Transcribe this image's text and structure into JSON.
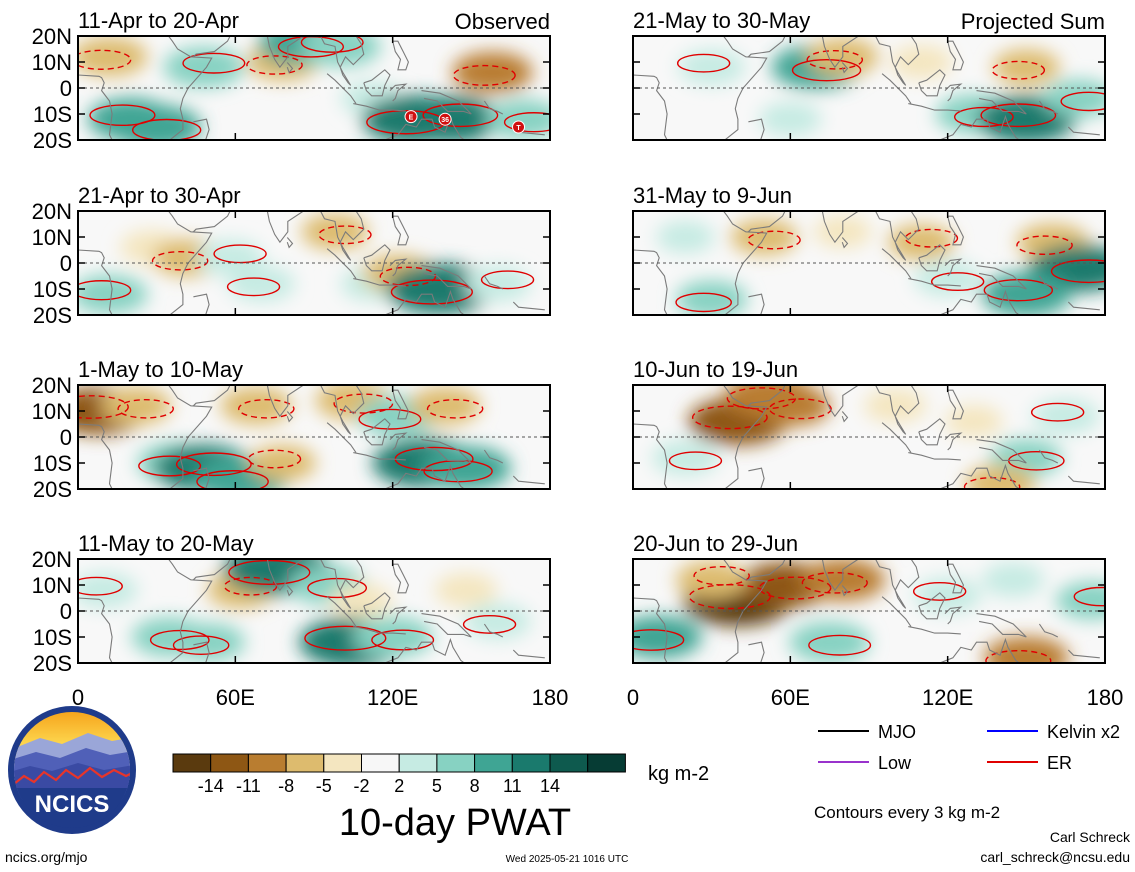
{
  "chart_data": {
    "type": "heatmap",
    "title": "10-day PWAT",
    "subtitle": "Contours every 3 kg m-2",
    "variable_units": "kg m-2",
    "columns": [
      {
        "header": "Observed",
        "panels": [
          "11-Apr to 20-Apr",
          "21-Apr to 30-Apr",
          "1-May to 10-May",
          "11-May to 20-May"
        ]
      },
      {
        "header": "Projected Sum",
        "panels": [
          "21-May to 30-May",
          "31-May to 9-Jun",
          "10-Jun to 19-Jun",
          "20-Jun to 29-Jun"
        ]
      }
    ],
    "lat_ticks": [
      "20N",
      "10N",
      "0",
      "10S",
      "20S"
    ],
    "lat_range": [
      -20,
      20
    ],
    "lon_ticks": [
      "0",
      "60E",
      "120E",
      "180"
    ],
    "lon_range": [
      0,
      180
    ],
    "colorbar": {
      "tick_labels": [
        "-14",
        "-11",
        "-8",
        "-5",
        "-2",
        "2",
        "5",
        "8",
        "11",
        "14"
      ],
      "colors": [
        "#5a3a0e",
        "#8e5714",
        "#b97d30",
        "#ddbb6e",
        "#f4e6c0",
        "#f7f7f7",
        "#c6ebe3",
        "#87d2c2",
        "#3fa594",
        "#1a7a6d",
        "#0e5a4e",
        "#063c34"
      ]
    },
    "legend": [
      {
        "label": "MJO",
        "color": "#000000"
      },
      {
        "label": "Kelvin x2",
        "color": "#0000ff"
      },
      {
        "label": "Low",
        "color": "#9932cc"
      },
      {
        "label": "ER",
        "color": "#e00000"
      }
    ],
    "tc_markers": [
      {
        "panel": 0,
        "label": "E",
        "lon": 127,
        "lat": -11
      },
      {
        "panel": 0,
        "label": "36",
        "lon": 140,
        "lat": -12
      },
      {
        "panel": 0,
        "label": "T",
        "lon": 168,
        "lat": -15
      }
    ],
    "anomaly_blobs": [
      [
        {
          "lon": 20,
          "lat": -12,
          "value": 9
        },
        {
          "lon": 30,
          "lat": -15,
          "value": 10
        },
        {
          "lon": 12,
          "lat": 12,
          "value": -7
        },
        {
          "lon": 48,
          "lat": 8,
          "value": 8
        },
        {
          "lon": 78,
          "lat": 10,
          "value": -6
        },
        {
          "lon": 85,
          "lat": 17,
          "value": 9
        },
        {
          "lon": 100,
          "lat": 16,
          "value": 8
        },
        {
          "lon": 112,
          "lat": -4,
          "value": 4
        },
        {
          "lon": 128,
          "lat": -12,
          "value": 13
        },
        {
          "lon": 142,
          "lat": -12,
          "value": 12
        },
        {
          "lon": 158,
          "lat": 6,
          "value": -8
        },
        {
          "lon": 170,
          "lat": -12,
          "value": 7
        }
      ],
      [
        {
          "lon": 12,
          "lat": -12,
          "value": 7
        },
        {
          "lon": 28,
          "lat": 6,
          "value": -4
        },
        {
          "lon": 42,
          "lat": 2,
          "value": -6
        },
        {
          "lon": 58,
          "lat": 2,
          "value": 5
        },
        {
          "lon": 70,
          "lat": -8,
          "value": 5
        },
        {
          "lon": 98,
          "lat": 12,
          "value": -5
        },
        {
          "lon": 112,
          "lat": -8,
          "value": 4
        },
        {
          "lon": 122,
          "lat": -4,
          "value": -6
        },
        {
          "lon": 138,
          "lat": -10,
          "value": 14
        },
        {
          "lon": 160,
          "lat": -8,
          "value": 5
        }
      ],
      [
        {
          "lon": 8,
          "lat": 10,
          "value": -12
        },
        {
          "lon": 22,
          "lat": 12,
          "value": -6
        },
        {
          "lon": 38,
          "lat": -10,
          "value": 8
        },
        {
          "lon": 48,
          "lat": -12,
          "value": 12
        },
        {
          "lon": 62,
          "lat": -16,
          "value": 11
        },
        {
          "lon": 68,
          "lat": 12,
          "value": -6
        },
        {
          "lon": 78,
          "lat": -10,
          "value": -5
        },
        {
          "lon": 105,
          "lat": 14,
          "value": -7
        },
        {
          "lon": 122,
          "lat": 8,
          "value": 8
        },
        {
          "lon": 132,
          "lat": -10,
          "value": 13
        },
        {
          "lon": 148,
          "lat": -12,
          "value": 10
        },
        {
          "lon": 140,
          "lat": 12,
          "value": -6
        }
      ],
      [
        {
          "lon": 10,
          "lat": 8,
          "value": 5
        },
        {
          "lon": 35,
          "lat": -10,
          "value": 7
        },
        {
          "lon": 50,
          "lat": -12,
          "value": 6
        },
        {
          "lon": 62,
          "lat": 8,
          "value": -5
        },
        {
          "lon": 76,
          "lat": 16,
          "value": 14
        },
        {
          "lon": 95,
          "lat": 10,
          "value": 7
        },
        {
          "lon": 105,
          "lat": -12,
          "value": 14
        },
        {
          "lon": 120,
          "lat": -10,
          "value": 8
        },
        {
          "lon": 108,
          "lat": 4,
          "value": -4
        },
        {
          "lon": 148,
          "lat": 8,
          "value": -4
        },
        {
          "lon": 160,
          "lat": -4,
          "value": 5
        }
      ],
      [
        {
          "lon": 30,
          "lat": 8,
          "value": 5
        },
        {
          "lon": 70,
          "lat": 8,
          "value": 10
        },
        {
          "lon": 80,
          "lat": 12,
          "value": -6
        },
        {
          "lon": 110,
          "lat": 10,
          "value": -4
        },
        {
          "lon": 150,
          "lat": 8,
          "value": -5
        },
        {
          "lon": 130,
          "lat": -10,
          "value": 7
        },
        {
          "lon": 150,
          "lat": -12,
          "value": 12
        },
        {
          "lon": 170,
          "lat": -4,
          "value": 6
        },
        {
          "lon": 60,
          "lat": -12,
          "value": 4
        }
      ],
      [
        {
          "lon": 20,
          "lat": 10,
          "value": 3
        },
        {
          "lon": 50,
          "lat": 10,
          "value": -5
        },
        {
          "lon": 80,
          "lat": 12,
          "value": -3
        },
        {
          "lon": 110,
          "lat": 8,
          "value": -5
        },
        {
          "lon": 160,
          "lat": 8,
          "value": -6
        },
        {
          "lon": 170,
          "lat": -2,
          "value": 12
        },
        {
          "lon": 150,
          "lat": -12,
          "value": 10
        },
        {
          "lon": 120,
          "lat": -6,
          "value": 5
        },
        {
          "lon": 30,
          "lat": -14,
          "value": 6
        }
      ],
      [
        {
          "lon": 40,
          "lat": 6,
          "value": -12
        },
        {
          "lon": 60,
          "lat": 12,
          "value": -8
        },
        {
          "lon": 52,
          "lat": 16,
          "value": -10
        },
        {
          "lon": 100,
          "lat": 12,
          "value": -4
        },
        {
          "lon": 130,
          "lat": 6,
          "value": -3
        },
        {
          "lon": 150,
          "lat": -8,
          "value": 6
        },
        {
          "lon": 165,
          "lat": 8,
          "value": 5
        },
        {
          "lon": 20,
          "lat": -8,
          "value": 5
        },
        {
          "lon": 140,
          "lat": -18,
          "value": -6
        }
      ],
      [
        {
          "lon": 40,
          "lat": 4,
          "value": -14
        },
        {
          "lon": 58,
          "lat": 10,
          "value": -11
        },
        {
          "lon": 80,
          "lat": 12,
          "value": -9
        },
        {
          "lon": 30,
          "lat": 12,
          "value": -6
        },
        {
          "lon": 10,
          "lat": -10,
          "value": 9
        },
        {
          "lon": 75,
          "lat": -12,
          "value": 8
        },
        {
          "lon": 120,
          "lat": 6,
          "value": 5
        },
        {
          "lon": 145,
          "lat": 12,
          "value": 4
        },
        {
          "lon": 150,
          "lat": -18,
          "value": -9
        },
        {
          "lon": 175,
          "lat": 4,
          "value": 6
        }
      ]
    ]
  },
  "footer": {
    "logo_text": "NCICS",
    "site": "ncics.org/mjo",
    "timestamp": "Wed 2025-05-21 1016 UTC",
    "author": "Carl Schreck",
    "email": "carl_schreck@ncsu.edu"
  }
}
